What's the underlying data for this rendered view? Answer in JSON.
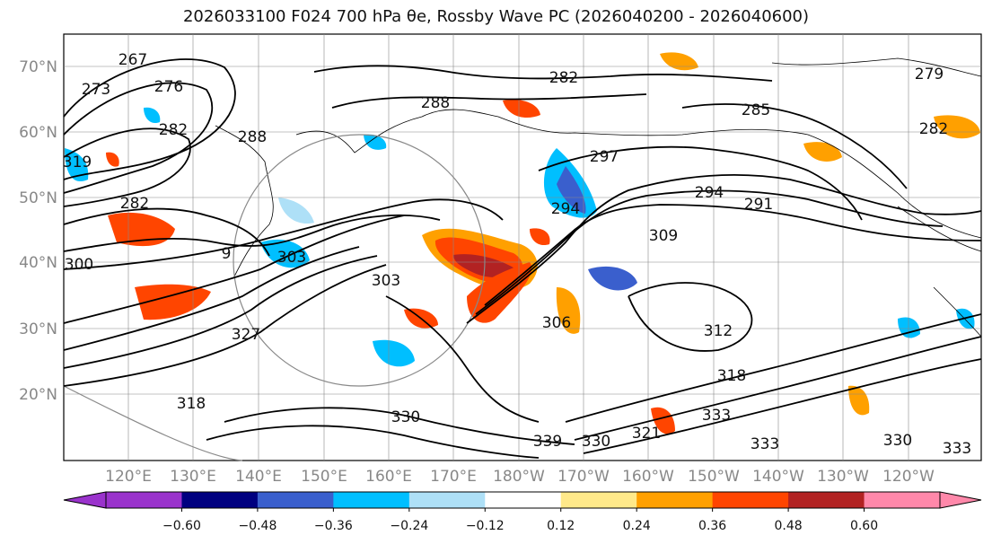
{
  "title": "2026033100 F024 700 hPa θe, Rossby Wave PC (2026040200 - 2026040600)",
  "lat_labels": [
    "70°N",
    "60°N",
    "50°N",
    "40°N",
    "30°N",
    "20°N"
  ],
  "lon_labels": [
    "120°E",
    "130°E",
    "140°E",
    "150°E",
    "160°E",
    "170°E",
    "180°W",
    "170°W",
    "160°W",
    "150°W",
    "140°W",
    "130°W",
    "120°W"
  ],
  "contour_labels": [
    "267",
    "273",
    "276",
    "282",
    "288",
    "288",
    "282",
    "285",
    "282",
    "279",
    "297",
    "294",
    "291",
    "282",
    "300",
    "309",
    "303",
    "294",
    "327",
    "318",
    "330",
    "333",
    "339",
    "330",
    "321",
    "312",
    "333",
    "318",
    "330",
    "333",
    "319",
    "9",
    "303",
    "306"
  ],
  "colorbar": {
    "tick_labels": [
      "−0.60",
      "−0.48",
      "−0.36",
      "−0.24",
      "−0.12",
      "0.12",
      "0.24",
      "0.36",
      "0.48",
      "0.60"
    ],
    "colors": [
      "#9a33cc",
      "#000080",
      "#3a5fcd",
      "#00bfff",
      "#aee0f7",
      "#ffffff",
      "#ffe98a",
      "#ffa000",
      "#ff4500",
      "#b22222",
      "#ff88aa"
    ]
  },
  "fill_colors": {
    "orange": "#ffa000",
    "red": "#ff4500",
    "darkred": "#b22222",
    "yellow": "#ffe98a",
    "blue": "#00bfff",
    "lightblue": "#aee0f7",
    "royal": "#3a5fcd"
  }
}
